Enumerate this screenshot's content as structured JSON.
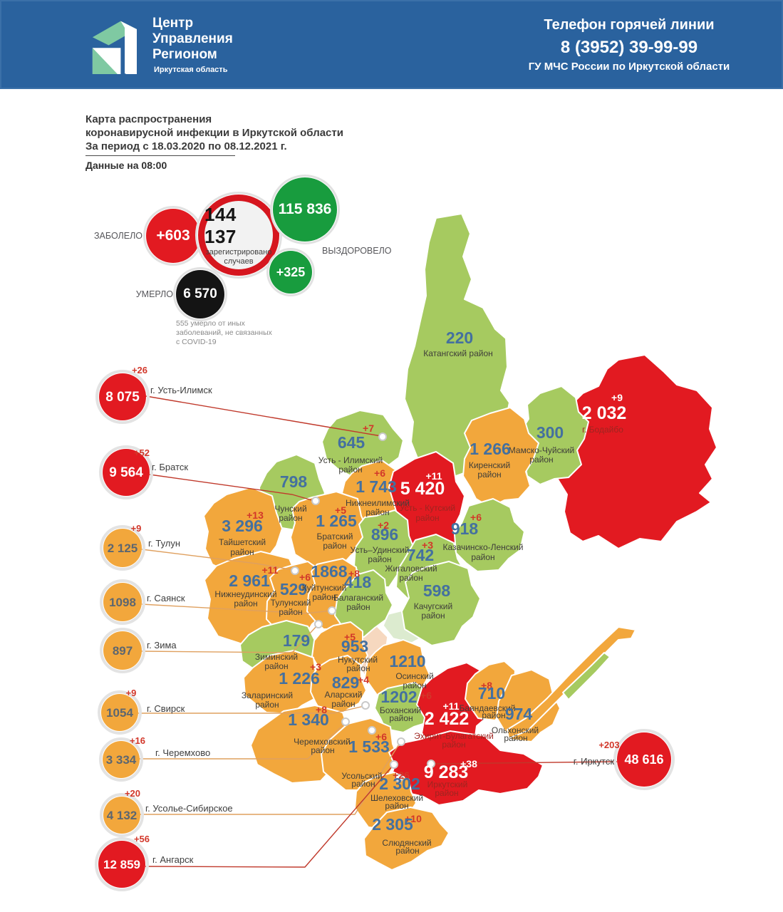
{
  "header": {
    "logo_lines": [
      "Центр",
      "Управления",
      "Регионом"
    ],
    "logo_subtitle": "Иркутская область",
    "hotline_title": "Телефон горячей линии",
    "hotline_phone": "8 (3952) 39-99-99",
    "hotline_org": "ГУ МЧС России по Иркутской области"
  },
  "title": {
    "line1": "Карта распространения",
    "line2": "коронавирусной инфекции в Иркутской области",
    "line3": "За период с 18.03.2020 по 08.12.2021 г.",
    "updated": "Данные на 08:00"
  },
  "stats": {
    "sick_label": "ЗАБОЛЕЛО",
    "sick_delta": "+603",
    "registered_value": "144 137",
    "registered_caption_line1": "зарегистрировано",
    "registered_caption_line2": "случаев",
    "recovered_value": "115 836",
    "recovered_delta": "+325",
    "recovered_label": "ВЫЗДОРОВЕЛО",
    "died_label": "УМЕРЛО",
    "died_value": "6 570",
    "died_note_line1": "555 умерло от иных",
    "died_note_line2": "заболеваний, не связанных",
    "died_note_line3": "с COVID-19"
  },
  "legend_colors": {
    "low": "#a6ca60",
    "medium": "#f2a73c",
    "high": "#e21a21"
  },
  "map": {
    "regions": [
      {
        "id": "katangsky",
        "name": "Катангский район",
        "value": "220",
        "delta": null,
        "level": "green"
      },
      {
        "id": "bodaibo",
        "name": "г. Бодайбо",
        "value": "2 032",
        "delta": "+9",
        "level": "red"
      },
      {
        "id": "mamsko",
        "name": "Мамско-Чуйский район",
        "value": "300",
        "delta": null,
        "level": "green"
      },
      {
        "id": "kirensky",
        "name": "Киренский район",
        "value": "1 266",
        "delta": null,
        "level": "orange"
      },
      {
        "id": "ust_ilimsky",
        "name": "Усть - Илимский район",
        "value": "645",
        "delta": "+7",
        "level": "green"
      },
      {
        "id": "chunsky",
        "name": "Чунский район",
        "value": "798",
        "delta": null,
        "level": "green"
      },
      {
        "id": "nizhneilimsky",
        "name": "Нижнеилимский район",
        "value": "1 743",
        "delta": "+6",
        "level": "orange"
      },
      {
        "id": "ust_kutsky",
        "name": "Усть - Кутский район",
        "value": "5 420",
        "delta": "+11",
        "level": "red"
      },
      {
        "id": "kazachinsko",
        "name": "Казачинско-Ленский район",
        "value": "918",
        "delta": "+6",
        "level": "green"
      },
      {
        "id": "taishetsky",
        "name": "Тайшетский район",
        "value": "3 296",
        "delta": "+13",
        "level": "orange"
      },
      {
        "id": "bratsky",
        "name": "Братский район",
        "value": "1 265",
        "delta": "+5",
        "level": "orange"
      },
      {
        "id": "ust_udinsky",
        "name": "Усть–Удинский район",
        "value": "896",
        "delta": "+2",
        "level": "green"
      },
      {
        "id": "zhigalovsky",
        "name": "Жигаловский район",
        "value": "742",
        "delta": "+3",
        "level": "green"
      },
      {
        "id": "nizhneudinsky",
        "name": "Нижнеудинский район",
        "value": "2 961",
        "delta": "+11",
        "level": "orange"
      },
      {
        "id": "tulunsky",
        "name": "Тулунский район",
        "value": "529",
        "delta": null,
        "level": "orange"
      },
      {
        "id": "kuitunsky",
        "name": "Куйтунский район",
        "value": "1868",
        "delta": "+6",
        "level": "orange"
      },
      {
        "id": "balagansky",
        "name": "Балаганский район",
        "value": "418",
        "delta": "+8",
        "level": "green"
      },
      {
        "id": "kachugsky",
        "name": "Качугский район",
        "value": "598",
        "delta": null,
        "level": "green"
      },
      {
        "id": "ziminsky",
        "name": "Зиминский район",
        "value": "179",
        "delta": null,
        "level": "green"
      },
      {
        "id": "nukutsky",
        "name": "Нукутский район",
        "value": "953",
        "delta": "+5",
        "level": "orange"
      },
      {
        "id": "zalarinsky",
        "name": "Заларинский район",
        "value": "1 226",
        "delta": "+3",
        "level": "orange"
      },
      {
        "id": "alarsky",
        "name": "Аларский район",
        "value": "829",
        "delta": "+4",
        "level": "orange"
      },
      {
        "id": "osinsky",
        "name": "Осинский район",
        "value": "1210",
        "delta": null,
        "level": "orange"
      },
      {
        "id": "bokhansky",
        "name": "Боханский район",
        "value": "1202",
        "delta": "+6",
        "level": "green"
      },
      {
        "id": "ekhirit",
        "name": "Эхирит-Булагатский район",
        "value": "2 422",
        "delta": "+11",
        "level": "red"
      },
      {
        "id": "bayandaevsky",
        "name": "Баяндаевский район",
        "value": "710",
        "delta": "+8",
        "level": "orange"
      },
      {
        "id": "olkhonsky",
        "name": "Ольхонский район",
        "value": "974",
        "delta": null,
        "level": "orange"
      },
      {
        "id": "cheremkhovsky",
        "name": "Черемховский район",
        "value": "1 340",
        "delta": "+8",
        "level": "orange"
      },
      {
        "id": "usolsky",
        "name": "Усольский район",
        "value": "1 533",
        "delta": "+6",
        "level": "orange"
      },
      {
        "id": "irkutsky",
        "name": "Иркутский район",
        "value": "9 283",
        "delta": "+38",
        "level": "red"
      },
      {
        "id": "shelekhovsky",
        "name": "Шелеховский район",
        "value": "2 302",
        "delta": "+26",
        "level": "orange"
      },
      {
        "id": "slyudyansky",
        "name": "Слюдянский район",
        "value": "2 305",
        "delta": "+10",
        "level": "orange"
      }
    ],
    "cities": [
      {
        "id": "ust_ilimsk",
        "name": "г. Усть-Илимск",
        "value": "8 075",
        "delta": "+26",
        "level": "red"
      },
      {
        "id": "bratsk",
        "name": "г. Братск",
        "value": "9 564",
        "delta": "+52",
        "level": "red"
      },
      {
        "id": "tulun",
        "name": "г. Тулун",
        "value": "2 125",
        "delta": "+9",
        "level": "orange"
      },
      {
        "id": "sayansk",
        "name": "г. Саянск",
        "value": "1098",
        "delta": null,
        "level": "orange"
      },
      {
        "id": "zima",
        "name": "г. Зима",
        "value": "897",
        "delta": null,
        "level": "orange"
      },
      {
        "id": "svirsk",
        "name": "г. Свирск",
        "value": "1054",
        "delta": "+9",
        "level": "orange"
      },
      {
        "id": "cheremkhovo",
        "name": "г. Черемхово",
        "value": "3 334",
        "delta": "+16",
        "level": "orange"
      },
      {
        "id": "usolye",
        "name": "г. Усолье-Сибирское",
        "value": "4 132",
        "delta": "+20",
        "level": "orange"
      },
      {
        "id": "angarsk",
        "name": "г. Ангарск",
        "value": "12 859",
        "delta": "+56",
        "level": "red"
      },
      {
        "id": "irkutsk",
        "name": "г. Иркутск",
        "value": "48 616",
        "delta": "+203",
        "level": "red"
      }
    ]
  }
}
